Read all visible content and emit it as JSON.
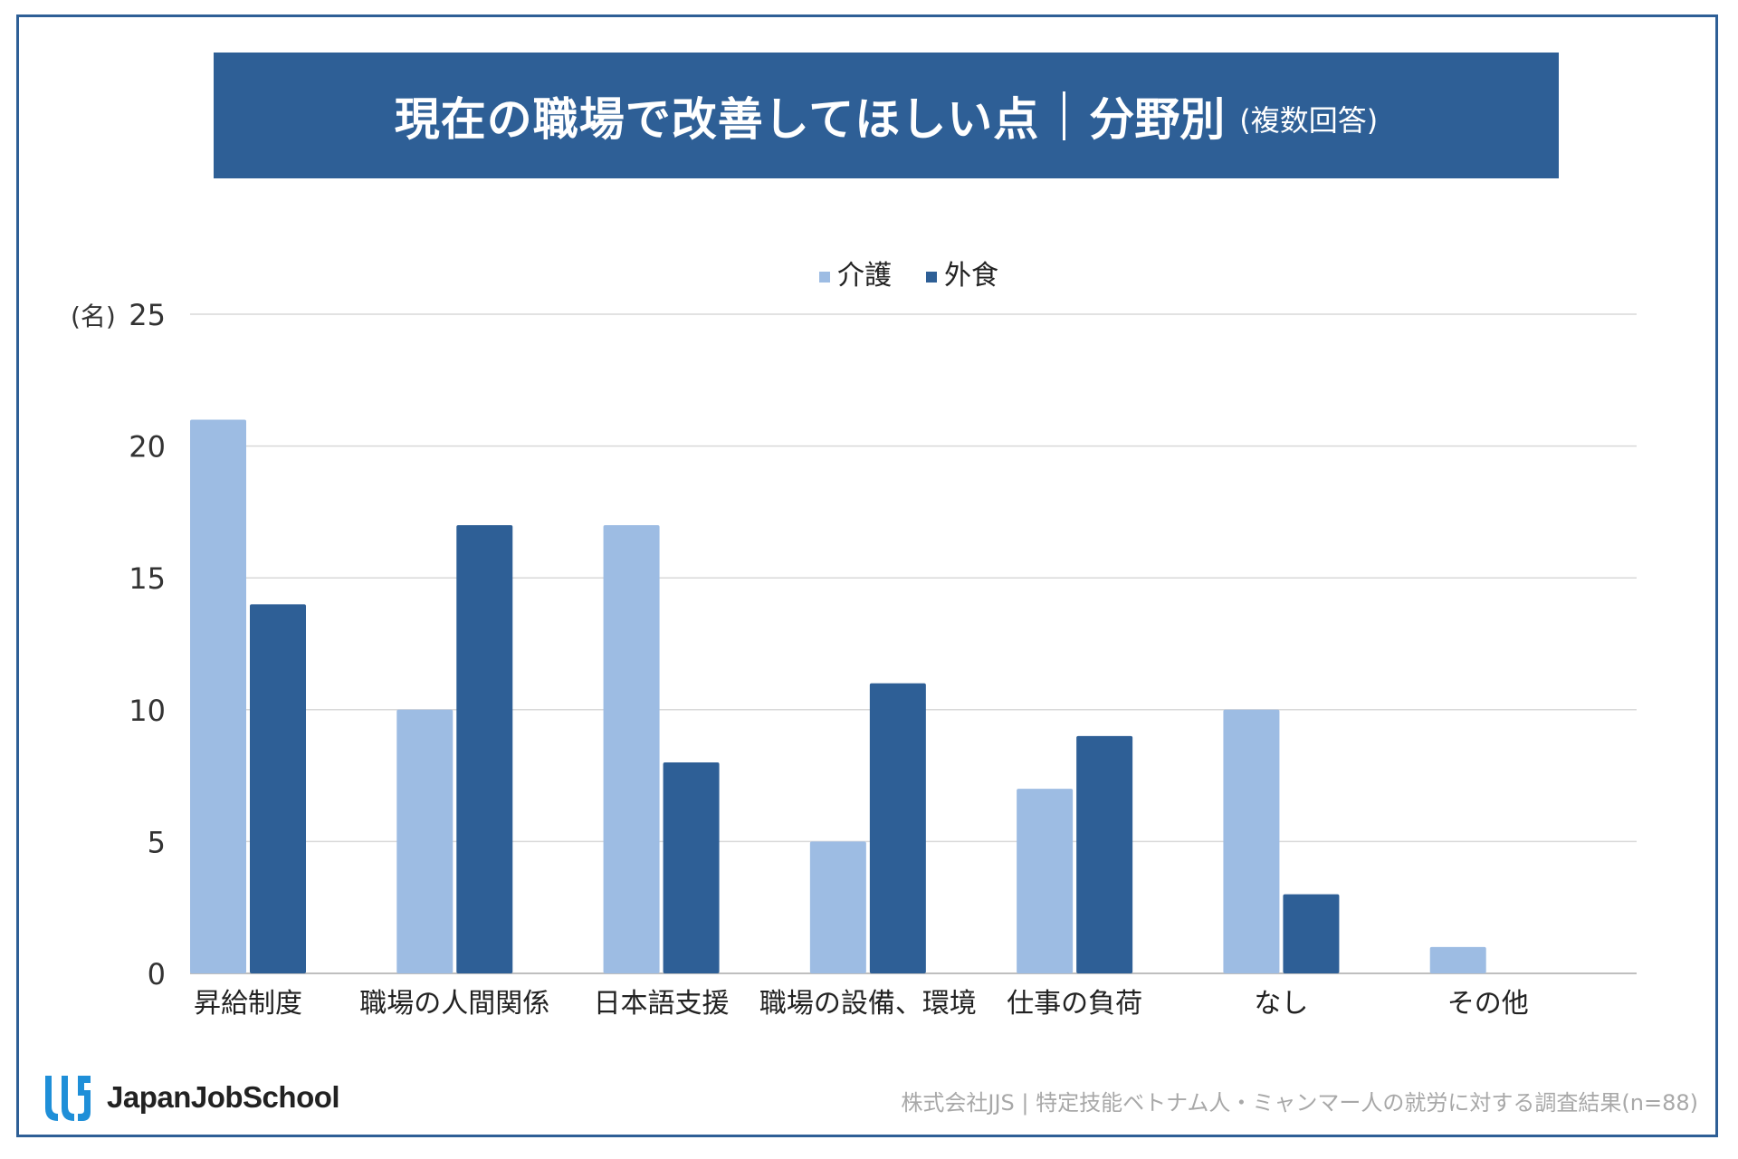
{
  "header": {
    "title": "現在の職場で改善してほしい点",
    "subtitle": "分野別",
    "note": "(複数回答)"
  },
  "colors": {
    "frame": "#2e5f96",
    "banner": "#2e5f96",
    "series_kaigo": "#9dbce3",
    "series_gaishoku": "#2e5f96",
    "grid": "#d9d9d9"
  },
  "chart_data": {
    "type": "bar",
    "ylabel": "(名)",
    "ylim": [
      0,
      25
    ],
    "yticks": [
      0,
      5,
      10,
      15,
      20,
      25
    ],
    "legend_position": "top-center",
    "grid": true,
    "categories": [
      "昇給制度",
      "職場の人間関係",
      "日本語支援",
      "職場の設備、環境",
      "仕事の負荷",
      "なし",
      "その他"
    ],
    "series": [
      {
        "name": "介護",
        "color": "#9dbce3",
        "values": [
          21,
          10,
          17,
          5,
          7,
          10,
          1
        ]
      },
      {
        "name": "外食",
        "color": "#2e5f96",
        "values": [
          14,
          17,
          8,
          11,
          9,
          3,
          0
        ]
      }
    ]
  },
  "footer": {
    "brand": "JapanJobSchool",
    "logo_icon": "jjs-logo-icon",
    "source": "株式会社JJS | 特定技能ベトナム人・ミャンマー人の就労に対する調査結果(n=88)"
  }
}
